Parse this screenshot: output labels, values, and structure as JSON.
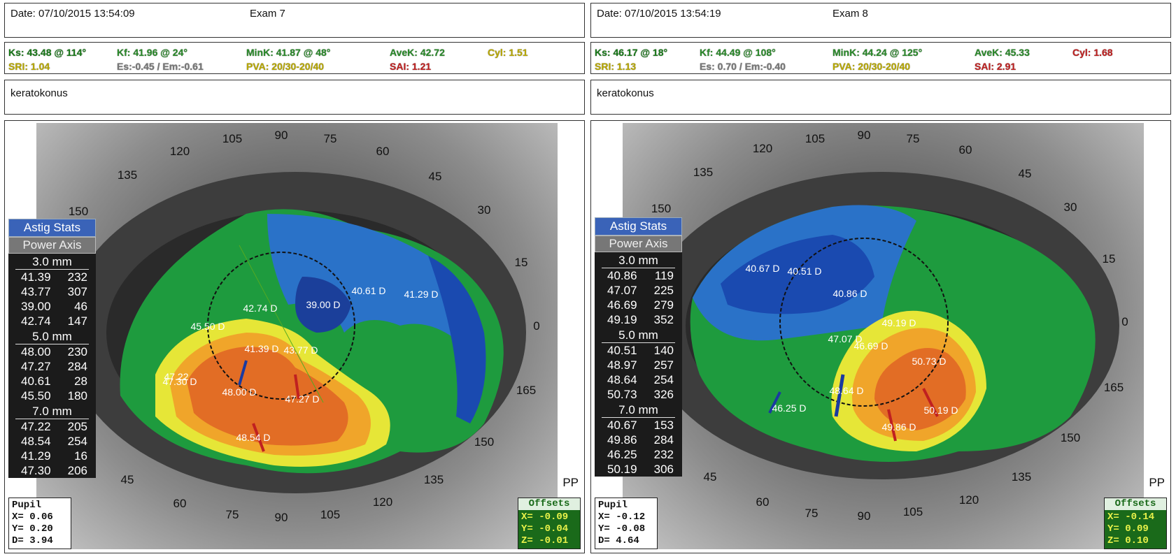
{
  "exam1": {
    "date": "Date: 07/10/2015 13:54:09",
    "exam": "Exam 7",
    "ks": "Ks: 43.48 @ 114°",
    "kf": "Kf: 41.96 @  24°",
    "mink": "MinK: 41.87 @  48°",
    "avek": "AveK: 42.72",
    "cyl": "Cyl:  1.51",
    "sri": "SRI: 1.04",
    "es": "Es:-0.45 / Em:-0.61",
    "pva": "PVA: 20/30-20/40",
    "sai": "SAI: 1.21",
    "note": "keratokonus",
    "astig": {
      "title": "Astig Stats",
      "header": "Power  Axis",
      "sections": [
        {
          "label": "3.0 mm",
          "rows": [
            [
              "41.39",
              "232"
            ],
            [
              "43.77",
              "307"
            ],
            [
              "39.00",
              "46"
            ],
            [
              "42.74",
              "147"
            ]
          ]
        },
        {
          "label": "5.0 mm",
          "rows": [
            [
              "48.00",
              "230"
            ],
            [
              "47.27",
              "284"
            ],
            [
              "40.61",
              "28"
            ],
            [
              "45.50",
              "180"
            ]
          ]
        },
        {
          "label": "7.0 mm",
          "rows": [
            [
              "47.22",
              "205"
            ],
            [
              "48.54",
              "254"
            ],
            [
              "41.29",
              "16"
            ],
            [
              "47.30",
              "206"
            ]
          ]
        }
      ]
    },
    "pupil": {
      "title": "Pupil",
      "x": "X=  0.06",
      "y": "Y=  0.20",
      "d": "D=  3.94"
    },
    "offsets": {
      "title": "Offsets",
      "x": "X= -0.09",
      "y": "Y= -0.04",
      "z": "Z= -0.01"
    },
    "pp": "PP",
    "dlabels": [
      "39.00 D",
      "40.61 D",
      "41.29 D",
      "42.74 D",
      "45.50 D",
      "41.39 D",
      "43.77 D",
      "47.22",
      "47.30 D",
      "48.00 D",
      "47.27 D",
      "48.54 D"
    ],
    "angles": [
      "90",
      "75",
      "60",
      "45",
      "30",
      "15",
      "0",
      "165",
      "150",
      "135",
      "120",
      "105",
      "90",
      "75",
      "60",
      "45",
      "150",
      "135",
      "120",
      "105"
    ]
  },
  "exam2": {
    "date": "Date: 07/10/2015 13:54:19",
    "exam": "Exam 8",
    "ks": "Ks: 46.17 @  18°",
    "kf": "Kf: 44.49 @ 108°",
    "mink": "MinK: 44.24 @ 125°",
    "avek": "AveK: 45.33",
    "cyl": "Cyl:  1.68",
    "sri": "SRI: 1.13",
    "es": "Es: 0.70 / Em:-0.40",
    "pva": "PVA: 20/30-20/40",
    "sai": "SAI: 2.91",
    "note": "keratokonus",
    "astig": {
      "title": "Astig Stats",
      "header": "Power  Axis",
      "sections": [
        {
          "label": "3.0 mm",
          "rows": [
            [
              "40.86",
              "119"
            ],
            [
              "47.07",
              "225"
            ],
            [
              "46.69",
              "279"
            ],
            [
              "49.19",
              "352"
            ]
          ]
        },
        {
          "label": "5.0 mm",
          "rows": [
            [
              "40.51",
              "140"
            ],
            [
              "48.97",
              "257"
            ],
            [
              "48.64",
              "254"
            ],
            [
              "50.73",
              "326"
            ]
          ]
        },
        {
          "label": "7.0 mm",
          "rows": [
            [
              "40.67",
              "153"
            ],
            [
              "49.86",
              "284"
            ],
            [
              "46.25",
              "232"
            ],
            [
              "50.19",
              "306"
            ]
          ]
        }
      ]
    },
    "pupil": {
      "title": "Pupil",
      "x": "X= -0.12",
      "y": "Y= -0.08",
      "d": "D=  4.64"
    },
    "offsets": {
      "title": "Offsets",
      "x": "X= -0.14",
      "y": "Y=  0.09",
      "z": "Z=  0.10"
    },
    "pp": "PP",
    "dlabels": [
      "40.67 D",
      "40.51 D",
      "40.86 D",
      "49.19 D",
      "47.07 D",
      "46.69 D",
      "50.73 D",
      "48.64 D",
      "46.25 D",
      "49.86 D",
      "50.19 D"
    ]
  },
  "colors": {
    "ks": "#1a7a1a",
    "kf": "#2a8a2a",
    "mink": "#2a8a2a",
    "avek": "#2a8a2a",
    "cyl1": "#b8a800",
    "cyl2": "#c02020",
    "sri": "#b8a800",
    "es": "#777777",
    "pva": "#b8a800",
    "sai": "#c02020"
  }
}
